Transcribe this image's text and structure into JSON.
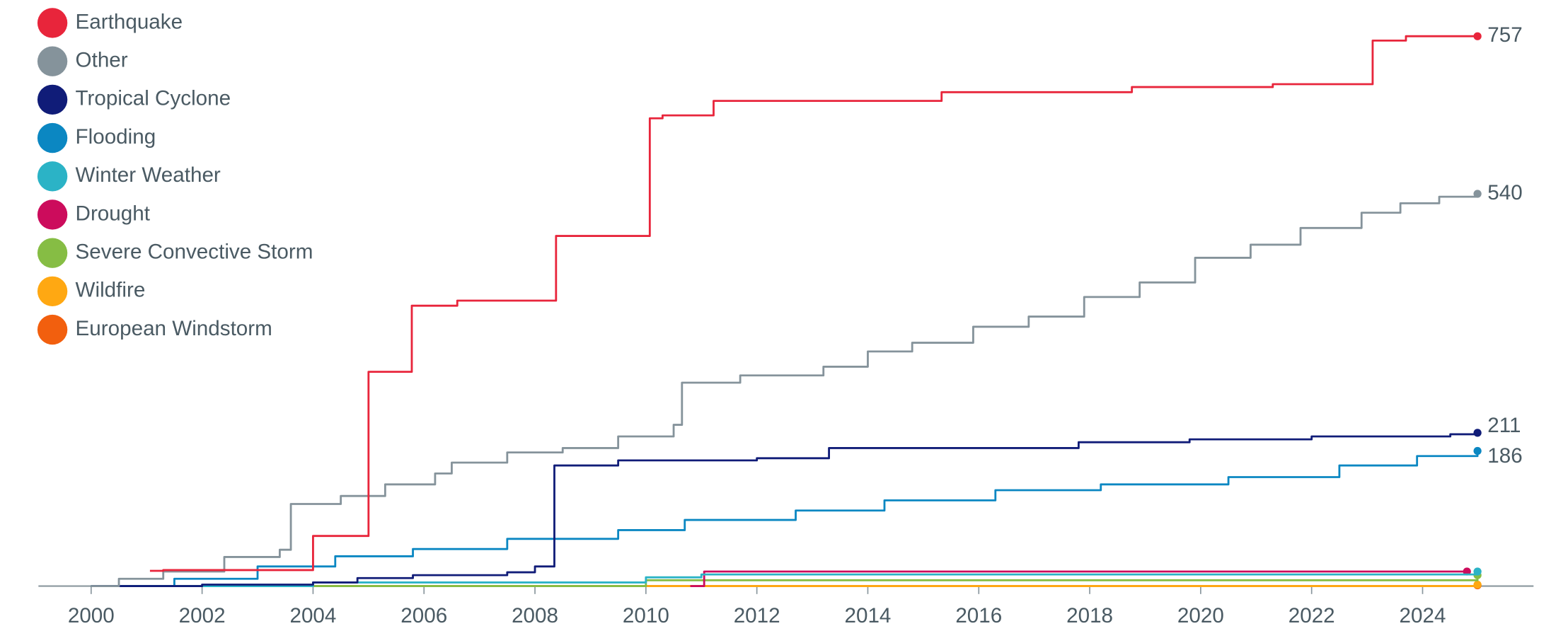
{
  "chart_data": {
    "type": "line",
    "step": true,
    "xlim": [
      1999.05,
      2026.0
    ],
    "xticks": [
      2000,
      2002,
      2004,
      2006,
      2008,
      2010,
      2012,
      2014,
      2016,
      2018,
      2020,
      2022,
      2024
    ],
    "ylim": [
      0,
      800
    ],
    "legend": "top-left",
    "series": [
      {
        "name": "Earthquake",
        "color": "#e8253b",
        "labeled": true,
        "x": [
          2001.06,
          2001.3,
          2004.0,
          2005.0,
          2005.78,
          2006.6,
          2008.38,
          2010.07,
          2010.3,
          2011.22,
          2015.33,
          2018.76,
          2021.3,
          2023.1,
          2023.7,
          2024.99
        ],
        "values": [
          21,
          22,
          69,
          295,
          386,
          393,
          482,
          644,
          648,
          668,
          680,
          687,
          691,
          751,
          757,
          757
        ]
      },
      {
        "name": "Other",
        "color": "#85939b",
        "labeled": true,
        "x": [
          2000.0,
          2000.5,
          2001.3,
          2002.4,
          2003.4,
          2003.6,
          2004.5,
          2005.3,
          2006.2,
          2006.5,
          2007.5,
          2008.5,
          2009.5,
          2010.5,
          2010.65,
          2011.7,
          2013.2,
          2014.0,
          2014.8,
          2015.9,
          2016.9,
          2017.9,
          2018.9,
          2019.9,
          2020.9,
          2021.8,
          2022.9,
          2023.6,
          2024.3,
          2024.99
        ],
        "values": [
          0,
          10,
          20,
          40,
          50,
          113,
          124,
          140,
          155,
          170,
          184,
          190,
          206,
          222,
          280,
          290,
          302,
          323,
          335,
          357,
          371,
          398,
          418,
          452,
          470,
          493,
          514,
          527,
          536,
          540
        ]
      },
      {
        "name": "Tropical Cyclone",
        "color": "#101c78",
        "labeled": true,
        "x": [
          2000.0,
          2002.0,
          2004.0,
          2004.8,
          2005.8,
          2007.5,
          2008.0,
          2008.35,
          2009.5,
          2012.0,
          2013.3,
          2017.8,
          2019.8,
          2022.0,
          2024.5,
          2024.99
        ],
        "values": [
          0,
          2,
          5,
          11,
          15,
          19,
          27,
          166,
          173,
          176,
          190,
          198,
          202,
          206,
          209,
          211
        ]
      },
      {
        "name": "Flooding",
        "color": "#0b87c2",
        "labeled": true,
        "x": [
          2000.0,
          2001.5,
          2003.0,
          2004.4,
          2005.8,
          2007.5,
          2009.5,
          2010.7,
          2012.7,
          2014.3,
          2016.3,
          2018.2,
          2020.5,
          2022.5,
          2023.9,
          2024.99
        ],
        "values": [
          0,
          10,
          27,
          41,
          51,
          65,
          77,
          91,
          104,
          118,
          132,
          140,
          150,
          166,
          179,
          186
        ]
      },
      {
        "name": "Winter Weather",
        "color": "#2bb3c6",
        "labeled": false,
        "x": [
          2000.0,
          2004.0,
          2010.0,
          2011.0,
          2024.99
        ],
        "values": [
          0,
          5,
          12,
          16,
          20
        ]
      },
      {
        "name": "Drought",
        "color": "#cc0c5c",
        "labeled": false,
        "x": [
          2010.8,
          2011.05,
          2024.8
        ],
        "values": [
          0,
          20,
          20
        ]
      },
      {
        "name": "Severe Convective Storm",
        "color": "#86bd44",
        "labeled": false,
        "x": [
          2000.0,
          2010.0,
          2024.99
        ],
        "values": [
          0,
          8,
          15
        ]
      },
      {
        "name": "Wildfire",
        "color": "#ffa812",
        "labeled": false,
        "x": [
          2000.0,
          2024.99
        ],
        "values": [
          0,
          2
        ]
      },
      {
        "name": "European Windstorm",
        "color": "#f25f0e",
        "labeled": false,
        "x": [
          2000.0,
          2024.99
        ],
        "values": [
          0,
          1
        ]
      }
    ]
  }
}
